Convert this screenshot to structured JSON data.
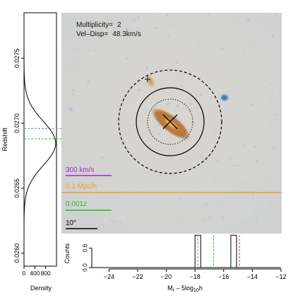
{
  "image_panel": {
    "multiplicity_label": "Multiplicity=",
    "multiplicity_value": "2",
    "veldisp_label": "Vel–Disp=",
    "veldisp_value": "48.3km/s",
    "scalebars": [
      {
        "label": "300 km/s",
        "color": "#9b30c8"
      },
      {
        "label": "0.1 Mpc/h",
        "color": "#f0a020"
      },
      {
        "label": "0.001z",
        "color": "#22c122"
      },
      {
        "label": "10″",
        "color": "#000000"
      }
    ]
  },
  "chart_data": [
    {
      "type": "line",
      "title": "",
      "xlabel": "Density",
      "ylabel": "Redshift",
      "xlim": [
        0,
        1200
      ],
      "ylim": [
        0.0259,
        0.02785
      ],
      "x_ticks": [
        0,
        400,
        800
      ],
      "y_ticks": [
        "0.0260",
        "0.0265",
        "0.0270",
        "0.0275"
      ],
      "y_tick_values": [
        0.026,
        0.0265,
        0.027,
        0.0275
      ],
      "curve": {
        "mean": 0.026845,
        "sigma": 0.00017,
        "peak": 1170
      },
      "hlines": [
        {
          "y": 0.02696,
          "color": "#888888",
          "style": "dashed"
        },
        {
          "y": 0.02688,
          "color": "#22c122",
          "style": "dashed"
        }
      ]
    },
    {
      "type": "bar",
      "title": "",
      "xlabel": "M_r – 5log10h",
      "xlabel_main": "M",
      "xlabel_sub1": "r",
      "xlabel_mid": " – 5log",
      "xlabel_sub2": "10",
      "xlabel_end": "h",
      "ylabel": "Counts",
      "xlim": [
        -25.2,
        -12
      ],
      "ylim": [
        0,
        1.05
      ],
      "x_ticks": [
        -24,
        -22,
        -20,
        -18,
        -16,
        -14,
        -12
      ],
      "x_tick_labels": [
        "−24",
        "−22",
        "−20",
        "−18",
        "−16",
        "−14",
        "−12"
      ],
      "y_ticks": [
        0.0,
        0.6
      ],
      "y_tick_labels": [
        "0.0",
        "0.6"
      ],
      "bars": [
        {
          "x0": -18.0,
          "x1": -17.6,
          "value": 1
        },
        {
          "x0": -15.5,
          "x1": -15.1,
          "value": 1
        }
      ],
      "vlines": [
        {
          "x": -17.8,
          "color": "#888888",
          "style": "dashed"
        },
        {
          "x": -16.7,
          "color": "#22c122",
          "style": "dashed"
        },
        {
          "x": -14.9,
          "color": "#e03030",
          "style": "dashed"
        }
      ]
    }
  ]
}
